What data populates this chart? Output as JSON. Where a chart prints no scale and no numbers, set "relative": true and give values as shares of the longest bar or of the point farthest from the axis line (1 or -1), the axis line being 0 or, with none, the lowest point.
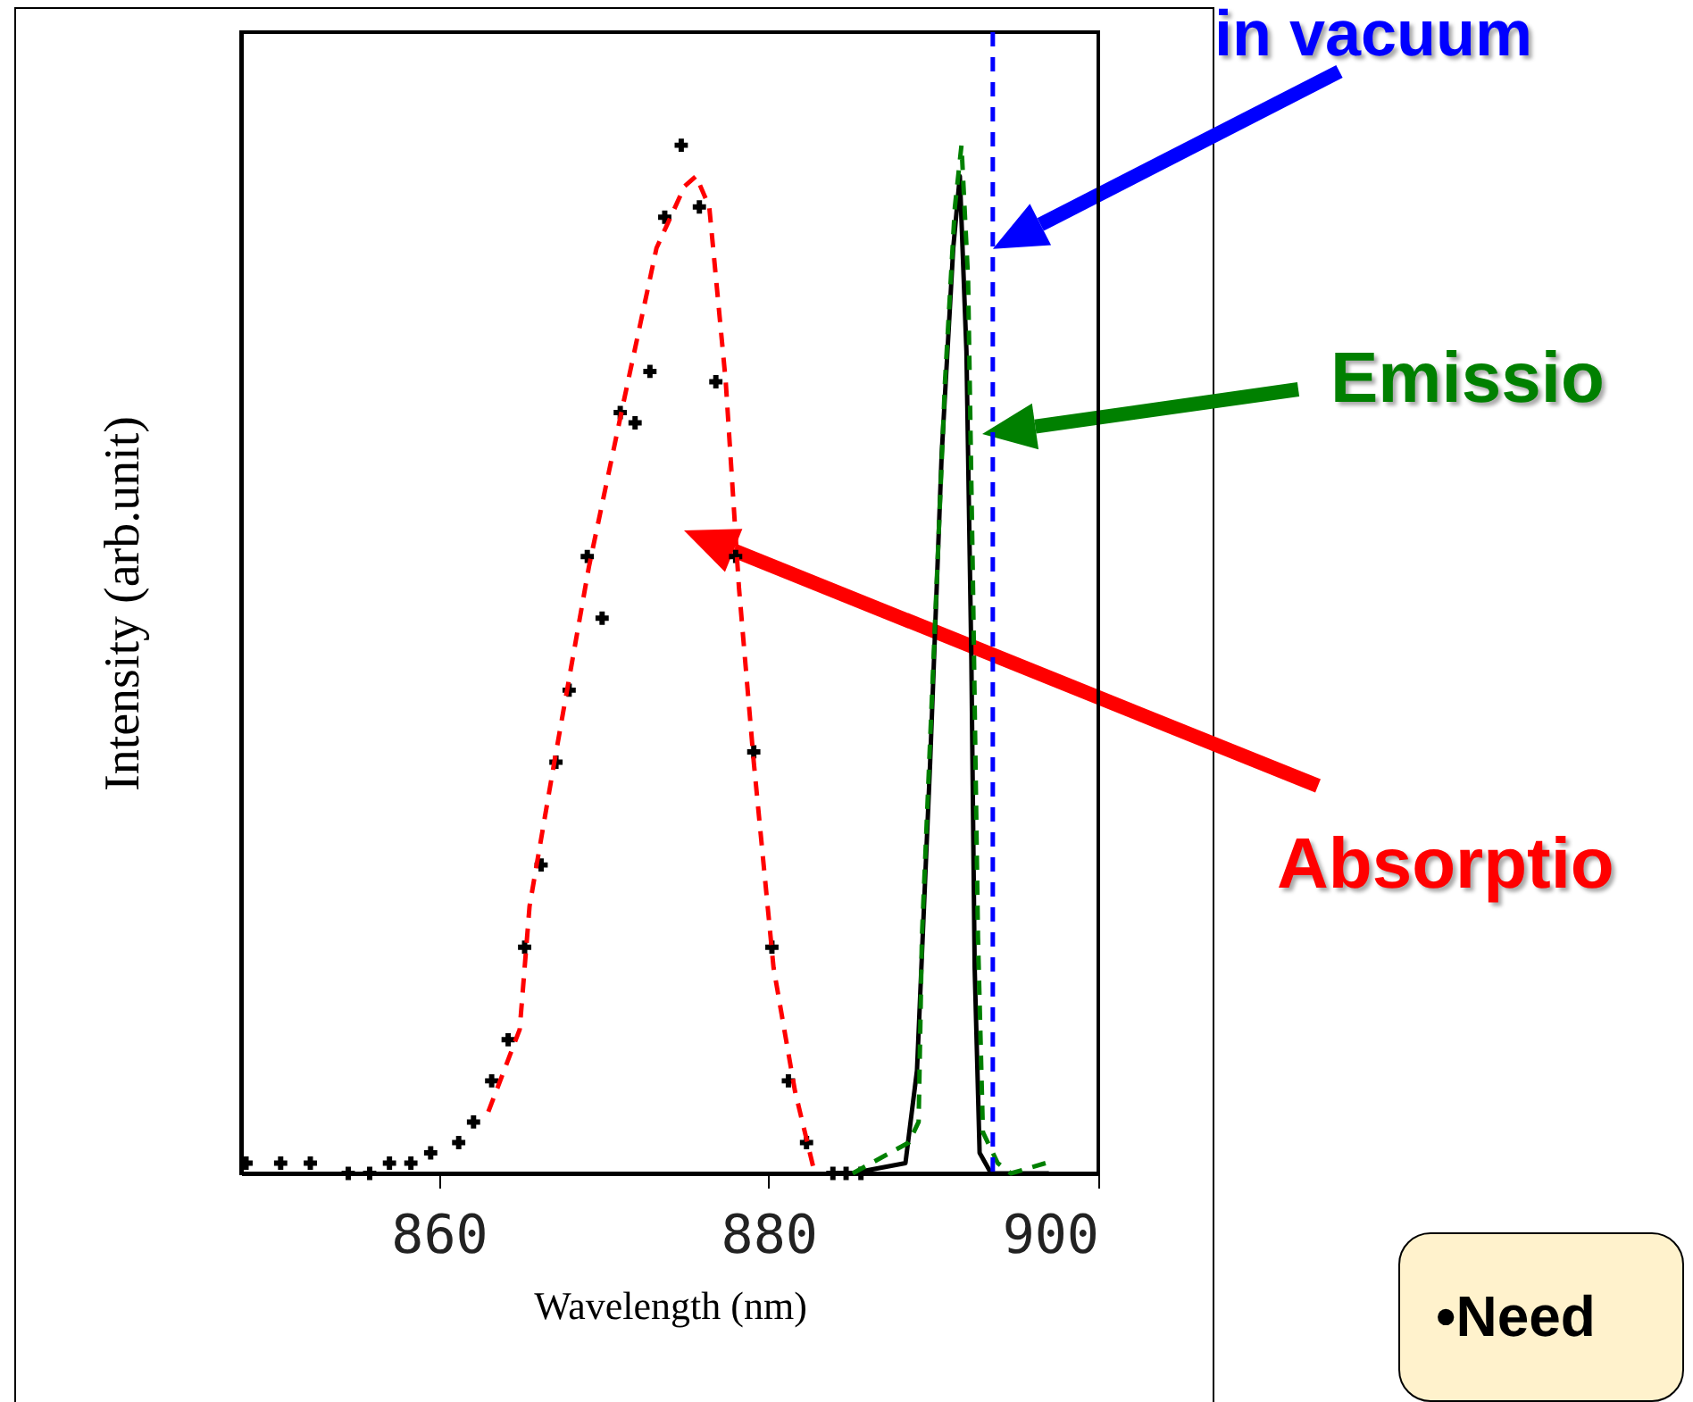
{
  "chart_data": {
    "type": "line",
    "relative": true,
    "xlabel": "Wavelength (nm)",
    "ylabel": "Intensity (arb.unit)",
    "xlim": [
      848,
      900
    ],
    "xticks": [
      860,
      880,
      900
    ],
    "grid": false,
    "series": [
      {
        "type": "scatter",
        "color": "#000000",
        "marker": "cross",
        "x": [
          848.3,
          850.4,
          852.2,
          854.5,
          855.8,
          857.0,
          858.3,
          859.5,
          861.2,
          862.1,
          863.2,
          864.2,
          865.2,
          866.2,
          867.1,
          867.9,
          869.0,
          869.9,
          871.0,
          871.9,
          872.8,
          873.7,
          874.7,
          875.8,
          876.8,
          878.0,
          879.1,
          880.2,
          881.2,
          882.3,
          883.9,
          884.7,
          885.6
        ],
        "values": [
          0.01,
          0.01,
          0.01,
          0.0,
          0.0,
          0.01,
          0.01,
          0.02,
          0.03,
          0.05,
          0.09,
          0.13,
          0.22,
          0.3,
          0.4,
          0.47,
          0.6,
          0.54,
          0.74,
          0.73,
          0.78,
          0.93,
          1.0,
          0.94,
          0.77,
          0.6,
          0.41,
          0.22,
          0.09,
          0.03,
          0.0,
          0.0,
          0.0
        ]
      },
      {
        "color": "#ff0000",
        "line_style": "dashed",
        "x": [
          863.0,
          864.9,
          865.5,
          867.0,
          869.1,
          871.2,
          873.2,
          874.9,
          875.6,
          876.4,
          877.4,
          878.2,
          879.1,
          880.3,
          881.6,
          882.8
        ],
        "values": [
          0.06,
          0.14,
          0.26,
          0.4,
          0.59,
          0.75,
          0.9,
          0.96,
          0.97,
          0.94,
          0.77,
          0.57,
          0.4,
          0.2,
          0.08,
          0.0
        ]
      },
      {
        "color": "#000000",
        "line_style": "solid",
        "x": [
          885.0,
          888.3,
          889.0,
          889.8,
          890.5,
          891.2,
          891.6,
          892.0,
          892.3,
          892.5,
          892.8,
          893.5,
          897.0
        ],
        "values": [
          0.0,
          0.01,
          0.1,
          0.4,
          0.7,
          0.9,
          0.97,
          0.8,
          0.5,
          0.2,
          0.02,
          0.0,
          0.0
        ]
      },
      {
        "color": "#008000",
        "line_style": "dashed",
        "x": [
          885.1,
          888.5,
          889.1,
          889.3,
          889.9,
          890.7,
          891.3,
          891.7,
          892.1,
          892.4,
          892.7,
          893.0,
          893.9,
          894.7,
          896.8
        ],
        "values": [
          0.0,
          0.03,
          0.05,
          0.23,
          0.46,
          0.77,
          0.94,
          1.0,
          0.87,
          0.57,
          0.23,
          0.04,
          0.01,
          0.0,
          0.01
        ]
      }
    ],
    "ref_lines": [
      {
        "axis": "x",
        "value": 893.6,
        "label": "in vacuum",
        "color": "#0000ff",
        "line_style": "dashed"
      }
    ],
    "annotations": [
      "Emissio",
      "Absorptio",
      "•Need"
    ]
  }
}
